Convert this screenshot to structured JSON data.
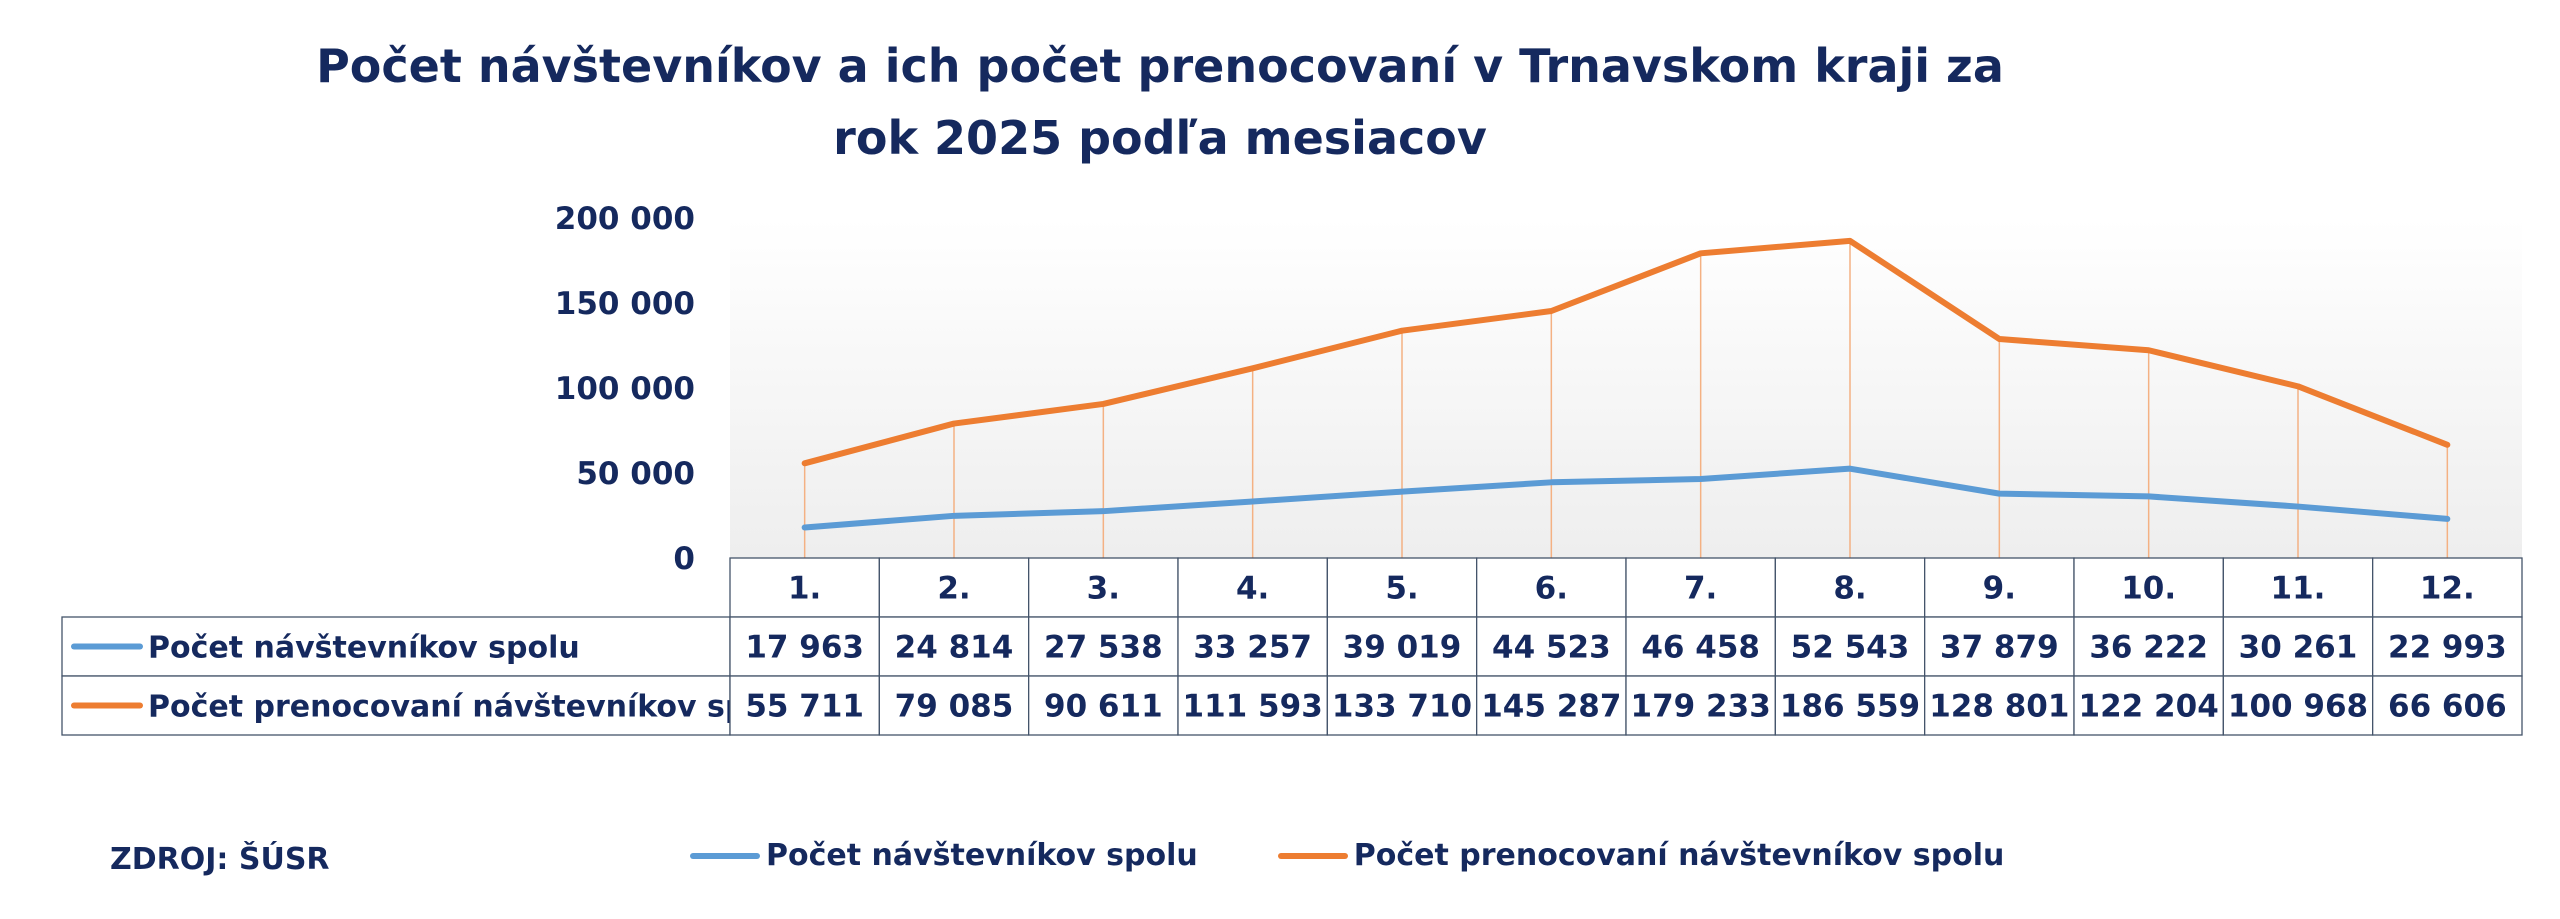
{
  "chart_data": {
    "type": "line",
    "title": "Počet návštevníkov a ich počet prenocovaní v Trnavskom kraji za rok 2025 podľa mesiacov",
    "categories": [
      "1.",
      "2.",
      "3.",
      "4.",
      "5.",
      "6.",
      "7.",
      "8.",
      "9.",
      "10.",
      "11.",
      "12."
    ],
    "series": [
      {
        "name": "Počet návštevníkov spolu",
        "color": "#5b9bd5",
        "values": [
          17963,
          24814,
          27538,
          33257,
          39019,
          44523,
          46458,
          52543,
          37879,
          36222,
          30261,
          22993
        ],
        "labels": [
          "17 963",
          "24 814",
          "27 538",
          "33 257",
          "39 019",
          "44 523",
          "46 458",
          "52 543",
          "37 879",
          "36 222",
          "30 261",
          "22 993"
        ]
      },
      {
        "name": "Počet prenocovaní návštevníkov spolu",
        "color": "#ed7d31",
        "values": [
          55711,
          79085,
          90611,
          111593,
          133710,
          145287,
          179233,
          186559,
          128801,
          122204,
          100968,
          66606
        ],
        "labels": [
          "55 711",
          "79 085",
          "90 611",
          "111 593",
          "133 710",
          "145 287",
          "179 233",
          "186 559",
          "128 801",
          "122 204",
          "100 968",
          "66 606"
        ]
      }
    ],
    "ylim": [
      0,
      200000
    ],
    "yticks": [
      0,
      50000,
      100000,
      150000,
      200000
    ],
    "ytick_labels": [
      "0",
      "50 000",
      "100 000",
      "150 000",
      "200 000"
    ],
    "data_table": true,
    "legend_position": "bottom",
    "grid": false,
    "drop_lines": true
  },
  "source": "ZDROJ: ŠÚSR"
}
